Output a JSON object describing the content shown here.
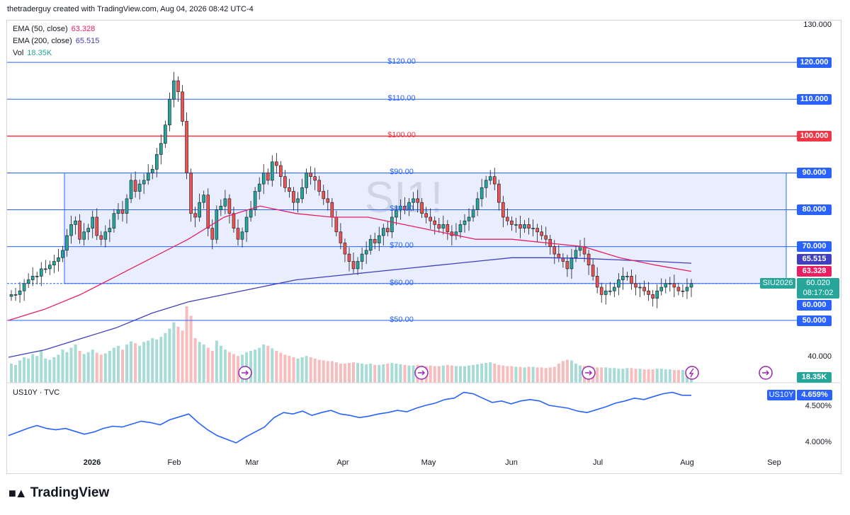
{
  "header": {
    "attribution": "thetraderguy created with TradingView.com, Aug 04, 2026 08:42 UTC-4"
  },
  "legend": {
    "ema50": {
      "label": "EMA (50, close)",
      "value": "63.328",
      "color": "#e91e63"
    },
    "ema200": {
      "label": "EMA (200, close)",
      "value": "65.515",
      "color": "#3f3fbf"
    },
    "vol": {
      "label": "Vol",
      "value": "18.35K",
      "color": "#26a69a"
    }
  },
  "watermark": "SI1!",
  "price_axis": {
    "ticks": [
      "130.000",
      "40.000"
    ],
    "level_badges": [
      "120.000",
      "110.000",
      "100.000",
      "90.000",
      "80.000",
      "70.000",
      "60.000",
      "50.000"
    ],
    "ema200_badge": "65.515",
    "ema50_badge": "63.328",
    "symbol_badge": "SIU2026",
    "last_price": "60.020",
    "countdown": "08:17:02",
    "vol_badge": "18.35K"
  },
  "level_labels": [
    "$120.00",
    "$110.00",
    "$100.00",
    "$90.00",
    "$80.00",
    "$70.00",
    "$60.00",
    "$50.00"
  ],
  "time_axis": [
    "2026",
    "Feb",
    "Mar",
    "Apr",
    "May",
    "Jun",
    "Jul",
    "Aug",
    "Sep"
  ],
  "lower_pane": {
    "title": "US10Y · TVC",
    "symbol_badge": "US10Y",
    "value_badge": "4.659%",
    "ticks": [
      "4.500%",
      "4.000%"
    ]
  },
  "brand": "TradingView",
  "colors": {
    "up": "#26a69a",
    "down": "#ef5350",
    "level": "#2962ff",
    "resistance": "#f23645",
    "box_fill": "#dde5ff",
    "ema50": "#e91e63",
    "ema200": "#3f3fbf"
  },
  "chart_data": [
    {
      "type": "candlestick",
      "title": "SI1!",
      "symbol": "SIU2026",
      "ylim": [
        40,
        130
      ],
      "x": [
        "2026",
        "Feb",
        "Mar",
        "Apr",
        "May",
        "Jun",
        "Jul",
        "Aug",
        "Sep"
      ],
      "horizontal_levels": [
        120,
        110,
        100,
        90,
        80,
        70,
        60,
        50
      ],
      "range_box": [
        60,
        90
      ],
      "close_approx": [
        57,
        57,
        58,
        60,
        61,
        62,
        62,
        64,
        64,
        65,
        66,
        67,
        69,
        73,
        76,
        77,
        72,
        74,
        75,
        78,
        73,
        72,
        74,
        75,
        79,
        80,
        79,
        83,
        88,
        85,
        87,
        88,
        90,
        91,
        95,
        98,
        103,
        110,
        115,
        112,
        104,
        90,
        79,
        78,
        82,
        84,
        75,
        72,
        80,
        81,
        83,
        79,
        75,
        72,
        74,
        78,
        80,
        85,
        87,
        90,
        88,
        93,
        92,
        89,
        86,
        85,
        82,
        83,
        86,
        90,
        89,
        88,
        85,
        83,
        82,
        78,
        74,
        71,
        68,
        66,
        64,
        66,
        68,
        69,
        72,
        71,
        73,
        75,
        74,
        78,
        80,
        81,
        80,
        82,
        83,
        82,
        79,
        78,
        77,
        76,
        75,
        76,
        74,
        73,
        74,
        76,
        77,
        78,
        80,
        83,
        86,
        88,
        89,
        87,
        82,
        78,
        77,
        76,
        76,
        75,
        76,
        75,
        75,
        74,
        73,
        72,
        70,
        68,
        67,
        66,
        64,
        67,
        69,
        70,
        68,
        65,
        62,
        59,
        57,
        58,
        58,
        59,
        61,
        62,
        62,
        60,
        59,
        59,
        58,
        57,
        56,
        58,
        59,
        60,
        60,
        59,
        58,
        58,
        59,
        60
      ]
    },
    {
      "type": "line",
      "name": "EMA (50, close)",
      "last": 63.328,
      "values": [
        50,
        53,
        57,
        62,
        67,
        72,
        78,
        81,
        79,
        78,
        78,
        76,
        74,
        72,
        72,
        71,
        70,
        67,
        65,
        63.3
      ]
    },
    {
      "type": "line",
      "name": "EMA (200, close)",
      "last": 65.515,
      "values": [
        40,
        42,
        45,
        48,
        52,
        55,
        57,
        59,
        61,
        62,
        63,
        64,
        65,
        66,
        67,
        67,
        66.8,
        66.4,
        66,
        65.5
      ]
    },
    {
      "type": "bar",
      "name": "Vol",
      "last": "18.35K",
      "values": [
        30,
        28,
        35,
        40,
        38,
        45,
        42,
        50,
        38,
        36,
        40,
        44,
        52,
        48,
        55,
        60,
        50,
        45,
        48,
        52,
        47,
        44,
        46,
        50,
        55,
        58,
        52,
        60,
        65,
        62,
        58,
        64,
        66,
        70,
        68,
        72,
        78,
        85,
        95,
        88,
        82,
        120,
        105,
        70,
        64,
        60,
        55,
        50,
        66,
        58,
        52,
        48,
        45,
        42,
        44,
        48,
        50,
        52,
        55,
        60,
        58,
        54,
        50,
        47,
        44,
        42,
        40,
        38,
        40,
        42,
        40,
        38,
        36,
        35,
        34,
        34,
        32,
        30,
        30,
        31,
        32,
        31,
        30,
        29,
        30,
        28,
        28,
        29,
        30,
        31,
        30,
        29,
        28,
        27,
        27,
        28,
        27,
        26,
        27,
        26,
        26,
        27,
        28,
        27,
        26,
        26,
        26,
        27,
        28,
        29,
        30,
        31,
        32,
        30,
        28,
        27,
        26,
        26,
        25,
        25,
        24,
        25,
        25,
        24,
        24,
        23,
        24,
        25,
        30,
        34,
        36,
        35,
        30,
        27,
        26,
        25,
        25,
        24,
        24,
        24,
        23,
        23,
        22,
        22,
        23,
        23,
        22,
        22,
        21,
        21,
        21,
        22,
        22,
        21,
        21,
        20,
        20,
        20,
        21,
        20
      ]
    },
    {
      "type": "line",
      "name": "US10Y",
      "last": "4.659%",
      "ylim": [
        3.9,
        4.8
      ],
      "values": [
        4.1,
        4.15,
        4.2,
        4.24,
        4.2,
        4.18,
        4.2,
        4.16,
        4.12,
        4.15,
        4.2,
        4.23,
        4.22,
        4.26,
        4.3,
        4.28,
        4.25,
        4.32,
        4.36,
        4.4,
        4.28,
        4.18,
        4.1,
        4.05,
        4.0,
        4.08,
        4.15,
        4.22,
        4.35,
        4.42,
        4.4,
        4.44,
        4.38,
        4.42,
        4.45,
        4.4,
        4.38,
        4.35,
        4.37,
        4.4,
        4.42,
        4.45,
        4.43,
        4.48,
        4.52,
        4.55,
        4.6,
        4.62,
        4.7,
        4.68,
        4.62,
        4.56,
        4.58,
        4.54,
        4.58,
        4.6,
        4.58,
        4.52,
        4.5,
        4.48,
        4.44,
        4.42,
        4.46,
        4.5,
        4.55,
        4.58,
        4.62,
        4.6,
        4.64,
        4.68,
        4.7,
        4.66,
        4.659
      ]
    }
  ]
}
